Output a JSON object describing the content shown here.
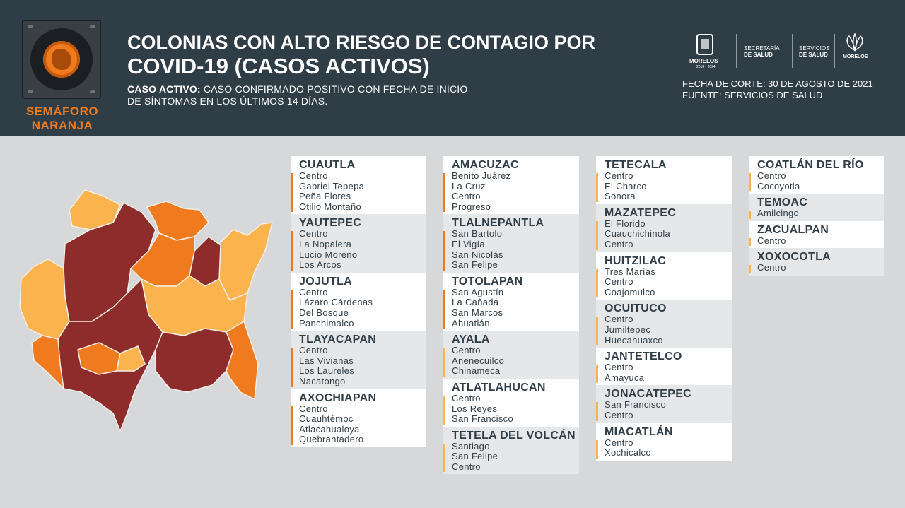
{
  "header": {
    "semaforo_label": "SEMÁFORO NARANJA",
    "title_line1": "COLONIAS CON ALTO RIESGO DE CONTAGIO POR",
    "title_line2": "COVID-19 (CASOS ACTIVOS)",
    "definition_term": "CASO ACTIVO:",
    "definition_text": "CASO CONFIRMADO POSITIVO CON FECHA DE INICIO DE SÍNTOMAS EN LOS ÚLTIMOS 14 DÍAS.",
    "cut_date": "FECHA DE CORTE: 30 DE AGOSTO DE 2021",
    "source": "FUENTE: SERVICIOS DE SALUD"
  },
  "logos": {
    "morelos_name": "MORELOS",
    "morelos_years": "2018 - 2024",
    "secretaria_l1": "SECRETARÍA",
    "secretaria_l2": "DE SALUD",
    "servicios_l1": "SERVICIOS",
    "servicios_l2": "DE SALUD",
    "morelos_brand": "MORELOS"
  },
  "colors": {
    "header_bg": "#2f3d47",
    "orange": "#f07a1e",
    "light_orange": "#fbb44d",
    "dark_red": "#8e2c2b"
  },
  "columns": [
    [
      {
        "name": "CUAUTLA",
        "level": "orange",
        "colonias": [
          "Centro",
          "Gabriel Tepepa",
          "Peña Flores",
          "Otilio Montaño"
        ]
      },
      {
        "name": "YAUTEPEC",
        "level": "orange",
        "colonias": [
          "Centro",
          "La Nopalera",
          "Lucio Moreno",
          "Los Arcos"
        ]
      },
      {
        "name": "JOJUTLA",
        "level": "orange",
        "colonias": [
          "Centro",
          "Lázaro Cárdenas",
          "Del Bosque",
          "Panchimalco"
        ]
      },
      {
        "name": "TLAYACAPAN",
        "level": "orange",
        "colonias": [
          "Centro",
          "Las Vivianas",
          "Los Laureles",
          "Nacatongo"
        ]
      },
      {
        "name": "AXOCHIAPAN",
        "level": "orange",
        "colonias": [
          "Centro",
          "Cuauhtémoc",
          "Atlacahualoya",
          "Quebrantadero"
        ]
      }
    ],
    [
      {
        "name": "AMACUZAC",
        "level": "orange",
        "colonias": [
          "Benito Juárez",
          "La Cruz",
          "Centro",
          "Progreso"
        ]
      },
      {
        "name": "TLALNEPANTLA",
        "level": "orange",
        "colonias": [
          "San Bartolo",
          "El Vigía",
          "San Nicolás",
          "San Felipe"
        ]
      },
      {
        "name": "TOTOLAPAN",
        "level": "orange",
        "colonias": [
          "San Agustín",
          "La Cañada",
          "San Marcos",
          "Ahuatlán"
        ]
      },
      {
        "name": "AYALA",
        "level": "light",
        "colonias": [
          "Centro",
          "Anenecuilco",
          "Chinameca"
        ]
      },
      {
        "name": "ATLATLAHUCAN",
        "level": "light",
        "colonias": [
          "Centro",
          "Los Reyes",
          "San Francisco"
        ]
      },
      {
        "name": "TETELA DEL VOLCÁN",
        "level": "light",
        "colonias": [
          "Santiago",
          "San Felipe",
          "Centro"
        ]
      }
    ],
    [
      {
        "name": "TETECALA",
        "level": "light",
        "colonias": [
          "Centro",
          "El Charco",
          "Sonora"
        ]
      },
      {
        "name": "MAZATEPEC",
        "level": "light",
        "colonias": [
          "El Florido",
          "Cuauchichinola",
          "Centro"
        ]
      },
      {
        "name": "HUITZILAC",
        "level": "light",
        "colonias": [
          "Tres Marías",
          "Centro",
          "Coajomulco"
        ]
      },
      {
        "name": "OCUITUCO",
        "level": "light",
        "colonias": [
          "Centro",
          "Jumiltepec",
          "Huecahuaxco"
        ]
      },
      {
        "name": "JANTETELCO",
        "level": "light",
        "colonias": [
          "Centro",
          "Amayuca"
        ]
      },
      {
        "name": "JONACATEPEC",
        "level": "light",
        "colonias": [
          "San Francisco",
          "Centro"
        ]
      },
      {
        "name": "MIACATLÁN",
        "level": "light",
        "colonias": [
          "Centro",
          "Xochicalco"
        ]
      }
    ],
    [
      {
        "name": "COATLÁN DEL RÍO",
        "level": "light",
        "colonias": [
          "Centro",
          "Cocoyotla"
        ]
      },
      {
        "name": "TEMOAC",
        "level": "light",
        "colonias": [
          "Amilcingo"
        ]
      },
      {
        "name": "ZACUALPAN",
        "level": "light",
        "colonias": [
          "Centro"
        ]
      },
      {
        "name": "XOXOCOTLA",
        "level": "light",
        "colonias": [
          "Centro"
        ]
      }
    ]
  ]
}
